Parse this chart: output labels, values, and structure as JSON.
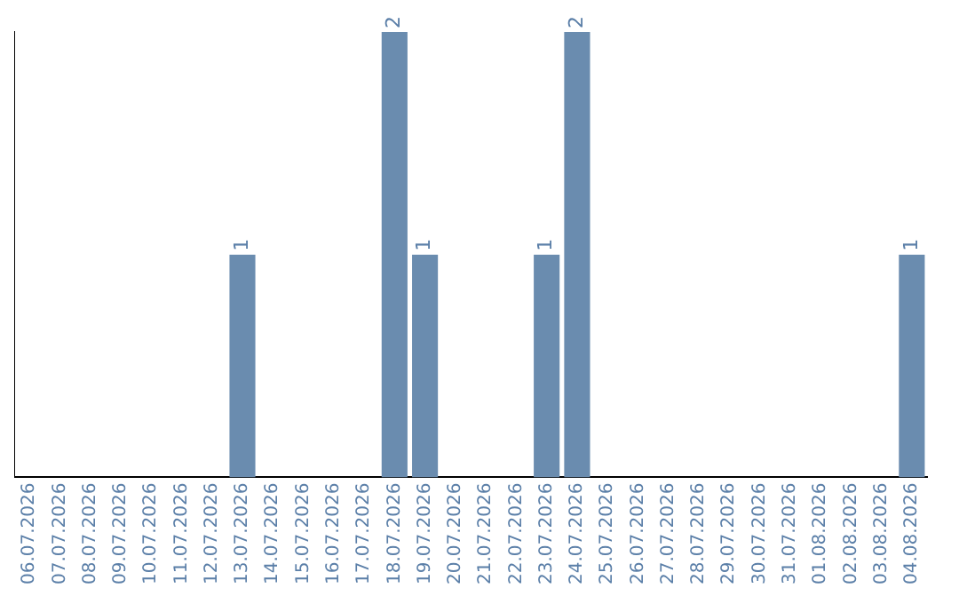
{
  "chart_data": {
    "type": "bar",
    "categories": [
      "06.07.2026",
      "07.07.2026",
      "08.07.2026",
      "09.07.2026",
      "10.07.2026",
      "11.07.2026",
      "12.07.2026",
      "13.07.2026",
      "14.07.2026",
      "15.07.2026",
      "16.07.2026",
      "17.07.2026",
      "18.07.2026",
      "19.07.2026",
      "20.07.2026",
      "21.07.2026",
      "22.07.2026",
      "23.07.2026",
      "24.07.2026",
      "25.07.2026",
      "26.07.2026",
      "27.07.2026",
      "28.07.2026",
      "29.07.2026",
      "30.07.2026",
      "31.07.2026",
      "01.08.2026",
      "02.08.2026",
      "03.08.2026",
      "04.08.2026"
    ],
    "values": [
      0,
      0,
      0,
      0,
      0,
      0,
      0,
      1,
      0,
      0,
      0,
      0,
      2,
      1,
      0,
      0,
      0,
      1,
      2,
      0,
      0,
      0,
      0,
      0,
      0,
      0,
      0,
      0,
      0,
      1
    ],
    "value_labels": [
      null,
      null,
      null,
      null,
      null,
      null,
      null,
      "1",
      null,
      null,
      null,
      null,
      "2",
      "1",
      null,
      null,
      null,
      "1",
      "2",
      null,
      null,
      null,
      null,
      null,
      null,
      null,
      null,
      null,
      null,
      "1"
    ],
    "color": "#6a8caf",
    "ylim": [
      0,
      2
    ],
    "tick_labels": "x",
    "grid": false,
    "legend": false
  }
}
